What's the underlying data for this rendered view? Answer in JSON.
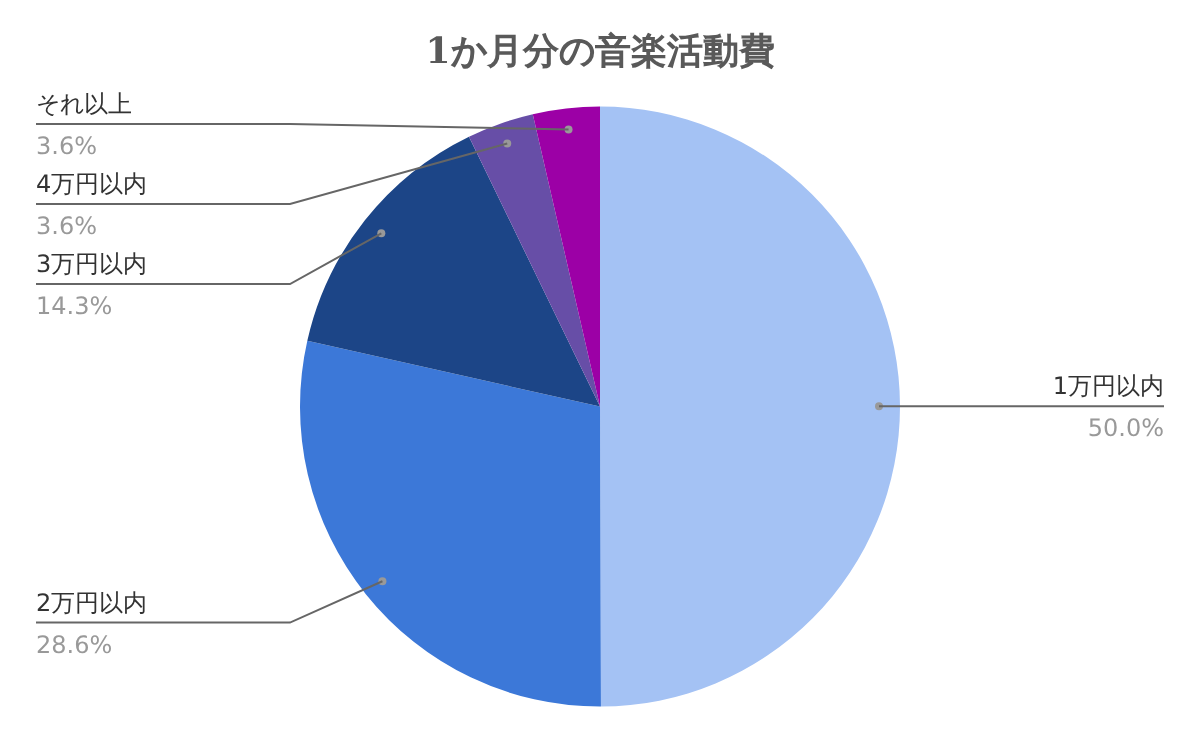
{
  "chart_data": {
    "type": "pie",
    "title": "1か月分の音楽活動費",
    "categories": [
      "1万円以内",
      "2万円以内",
      "3万円以内",
      "4万円以内",
      "それ以上"
    ],
    "values": [
      50.0,
      28.6,
      14.3,
      3.6,
      3.6
    ],
    "colors": [
      "#a4c2f4",
      "#3c78d8",
      "#1c4587",
      "#674ea7",
      "#9c00a6"
    ],
    "value_labels": [
      "50.0%",
      "28.6%",
      "14.3%",
      "3.6%",
      "3.6%"
    ],
    "legend": false
  }
}
